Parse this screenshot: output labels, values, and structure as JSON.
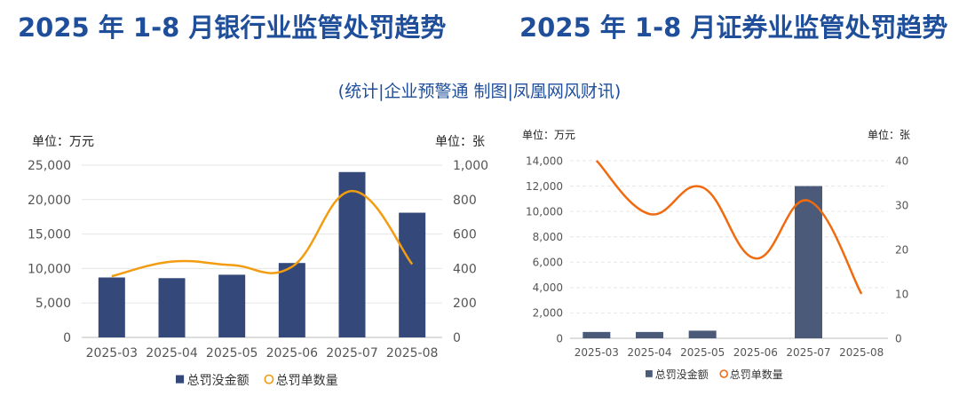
{
  "source_note": "(统计|企业预警通  制图|凤凰网风财讯)",
  "chart_data": [
    {
      "type": "bar",
      "title": "2025 年 1-8 月银行业监管处罚趋势",
      "left_unit": "单位：万元",
      "right_unit": "单位：张",
      "categories": [
        "2025-03",
        "2025-04",
        "2025-05",
        "2025-06",
        "2025-07",
        "2025-08"
      ],
      "y_ticks": [
        "0",
        "5,000",
        "10,000",
        "15,000",
        "20,000",
        "25,000"
      ],
      "y2_ticks": [
        "0",
        "200",
        "400",
        "600",
        "800",
        "1,000"
      ],
      "ylim": [
        0,
        25000
      ],
      "y2lim": [
        0,
        1000
      ],
      "series": [
        {
          "name": "总罚没金额",
          "kind": "bar",
          "axis": "left",
          "color": "#34497a",
          "values": [
            8700,
            8600,
            9100,
            10800,
            24000,
            18100
          ]
        },
        {
          "name": "总罚单数量",
          "kind": "line",
          "axis": "right",
          "color": "#f39c12",
          "smooth": true,
          "values": [
            355,
            440,
            420,
            410,
            850,
            425
          ]
        }
      ],
      "legend": "bottom",
      "grid": true
    },
    {
      "type": "bar",
      "title": "2025 年 1-8 月证券业监管处罚趋势",
      "left_unit": "单位：万元",
      "right_unit": "单位：张",
      "categories": [
        "2025-03",
        "2025-04",
        "2025-05",
        "2025-06",
        "2025-07",
        "2025-08"
      ],
      "y_ticks": [
        "0",
        "2,000",
        "4,000",
        "6,000",
        "8,000",
        "10,000",
        "12,000",
        "14,000"
      ],
      "y2_ticks": [
        "0",
        "10",
        "20",
        "30",
        "40"
      ],
      "ylim": [
        0,
        14000
      ],
      "y2lim": [
        0,
        40
      ],
      "series": [
        {
          "name": "总罚没金额",
          "kind": "bar",
          "axis": "left",
          "color": "#4a5a78",
          "values": [
            500,
            500,
            600,
            0,
            12000,
            0
          ]
        },
        {
          "name": "总罚单数量",
          "kind": "line",
          "axis": "right",
          "color": "#f06a0f",
          "smooth": true,
          "values": [
            40,
            28,
            34,
            18,
            31,
            10
          ]
        }
      ],
      "legend": "bottom",
      "grid": true
    }
  ]
}
